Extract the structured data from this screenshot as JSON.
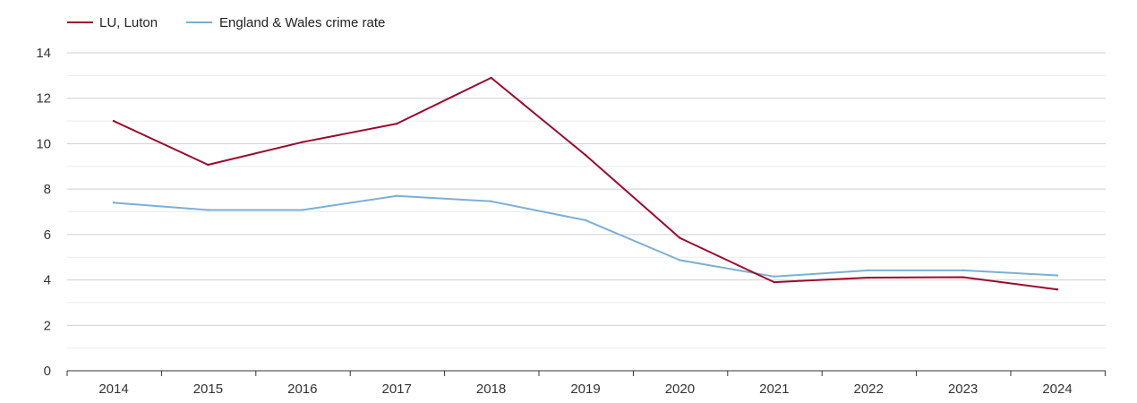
{
  "chart_data": {
    "type": "line",
    "title": "",
    "xlabel": "",
    "ylabel": "",
    "categories": [
      "2014",
      "2015",
      "2016",
      "2017",
      "2018",
      "2019",
      "2020",
      "2021",
      "2022",
      "2023",
      "2024"
    ],
    "ylim": [
      0,
      14
    ],
    "yticks": [
      0,
      2,
      4,
      6,
      8,
      10,
      12,
      14
    ],
    "grid": true,
    "legend_position": "top-left",
    "series": [
      {
        "name": "LU, Luton",
        "color": "#9b0a2e",
        "values": [
          11.0,
          9.07,
          10.07,
          10.88,
          12.9,
          9.5,
          5.85,
          3.9,
          4.1,
          4.12,
          3.58
        ]
      },
      {
        "name": "England & Wales crime rate",
        "color": "#7bafd4",
        "values": [
          7.4,
          7.08,
          7.08,
          7.7,
          7.46,
          6.63,
          4.87,
          4.15,
          4.42,
          4.42,
          4.2
        ]
      }
    ]
  }
}
